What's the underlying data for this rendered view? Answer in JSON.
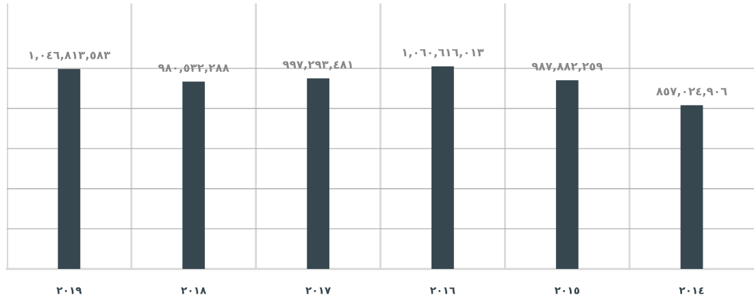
{
  "chart_data": {
    "type": "bar",
    "categories": [
      "٢٠١٩",
      "٢٠١٨",
      "٢٠١٧",
      "٢٠١٦",
      "٢٠١٥",
      "٢٠١٤"
    ],
    "values": [
      1046813583,
      980532288,
      997293481,
      1060616013,
      987882259,
      857024906
    ],
    "value_labels": [
      "١,٠٤٦,٨١٣,٥٨٣",
      "٩٨٠,٥٣٢,٢٨٨",
      "٩٩٧,٢٩٣,٤٨١",
      "١,٠٦٠,٦١٦,٠١٣",
      "٩٨٧,٨٨٢,٢٥٩",
      "٨٥٧,٠٢٤,٩٠٦"
    ],
    "color": "#37474f",
    "ylim": [
      0,
      1390000000
    ],
    "yticks": [
      {
        "value": 210000000,
        "label": null
      },
      {
        "value": 420000000,
        "label": null
      },
      {
        "value": 630000000,
        "label": null
      },
      {
        "value": 840000000,
        "label": null
      },
      {
        "value": 1050000000,
        "label": null
      }
    ],
    "tick_labels": "x",
    "grid": true
  }
}
